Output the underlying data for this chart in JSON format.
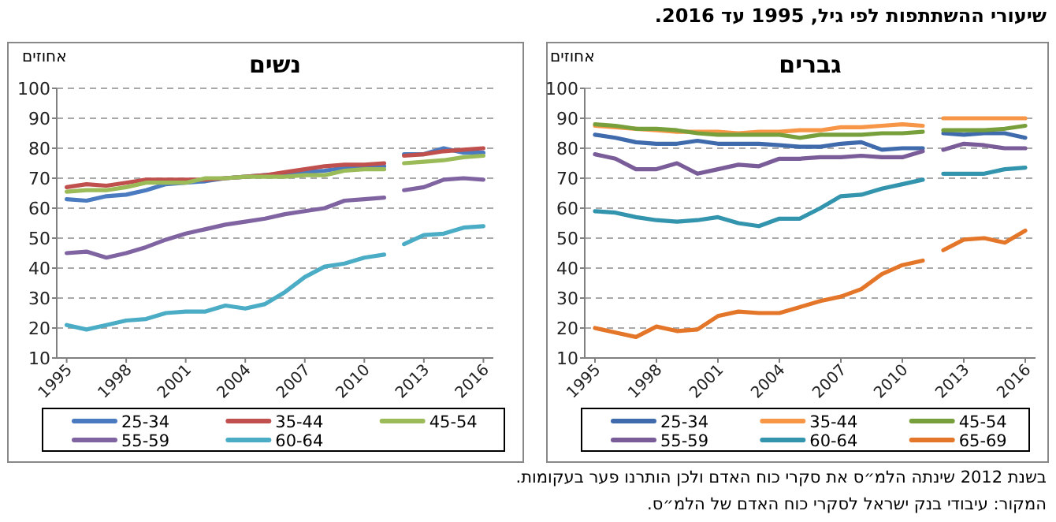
{
  "chart_data": [
    {
      "type": "line",
      "title": "גברים",
      "ylabel": "אחוזים",
      "annotations": [
        "שיעורי ההשתתפות לפי גיל, 1995 עד 2016.",
        "בשנת 2012 שינתה הלמ״ס את סקרי כוח האדם ולכן הותרנו פער בעקומות.",
        "המקור: עיבודי בנק ישראל לסקרי כוח האדם של הלמ״ס."
      ],
      "x": [
        1995,
        1996,
        1997,
        1998,
        1999,
        2000,
        2001,
        2002,
        2003,
        2004,
        2005,
        2006,
        2007,
        2008,
        2009,
        2010,
        2011,
        2011.5,
        2012,
        2013,
        2014,
        2015,
        2016
      ],
      "xlim": [
        1994.5,
        2016.5
      ],
      "xticks": [
        1995,
        1998,
        2001,
        2004,
        2007,
        2010,
        2013,
        2016
      ],
      "ylim": [
        10,
        100
      ],
      "yticks": [
        10,
        20,
        30,
        40,
        50,
        60,
        70,
        80,
        90,
        100
      ],
      "grid": "y",
      "legend": "bottom",
      "marker": "none",
      "line_style": "solid",
      "series": [
        {
          "name": "25-34",
          "color": "#3f6bad",
          "values": [
            84.5,
            83.5,
            82,
            81.5,
            81.5,
            82.5,
            81.5,
            81.5,
            81.5,
            81,
            80.5,
            80.5,
            81.5,
            82,
            79.5,
            80,
            80,
            null,
            85,
            84.5,
            85,
            85,
            83.5
          ]
        },
        {
          "name": "35-44",
          "color": "#f79646",
          "values": [
            87.5,
            87,
            86.5,
            86,
            85.5,
            85.5,
            85.5,
            85,
            85.5,
            85.5,
            86,
            86,
            87,
            87,
            87.5,
            88,
            87.5,
            null,
            90,
            90,
            90,
            90,
            90
          ]
        },
        {
          "name": "45-54",
          "color": "#77a03c",
          "values": [
            88,
            87.5,
            86.5,
            86.5,
            86,
            85,
            84.5,
            84.5,
            84.5,
            84.5,
            83.5,
            84.5,
            84.5,
            84.5,
            85,
            85,
            85.5,
            null,
            86,
            86,
            86,
            86.5,
            87.5
          ]
        },
        {
          "name": "55-59",
          "color": "#7a5c99",
          "values": [
            78,
            76.5,
            73,
            73,
            75,
            71.5,
            73,
            74.5,
            74,
            76.5,
            76.5,
            77,
            77,
            77.5,
            77,
            77,
            79,
            null,
            79.5,
            81.5,
            81,
            80,
            80
          ]
        },
        {
          "name": "60-64",
          "color": "#3394ad",
          "values": [
            59,
            58.5,
            57,
            56,
            55.5,
            56,
            57,
            55,
            54,
            56.5,
            56.5,
            60,
            64,
            64.5,
            66.5,
            68,
            69.5,
            null,
            71.5,
            71.5,
            71.5,
            73,
            73.5
          ]
        },
        {
          "name": "65-69",
          "color": "#e4762a",
          "values": [
            20,
            18.5,
            17,
            20.5,
            19,
            19.5,
            24,
            25.5,
            25,
            25,
            27,
            29,
            30.5,
            33,
            38,
            41,
            42.5,
            null,
            46,
            49.5,
            50,
            48.5,
            52.5
          ]
        }
      ]
    },
    {
      "type": "line",
      "title": "נשים",
      "ylabel": "אחוזים",
      "x": [
        1995,
        1996,
        1997,
        1998,
        1999,
        2000,
        2001,
        2002,
        2003,
        2004,
        2005,
        2006,
        2007,
        2008,
        2009,
        2010,
        2011,
        2011.5,
        2012,
        2013,
        2014,
        2015,
        2016
      ],
      "xlim": [
        1994.5,
        2016.5
      ],
      "xticks": [
        1995,
        1998,
        2001,
        2004,
        2007,
        2010,
        2013,
        2016
      ],
      "ylim": [
        10,
        100
      ],
      "yticks": [
        10,
        20,
        30,
        40,
        50,
        60,
        70,
        80,
        90,
        100
      ],
      "grid": "y",
      "legend": "bottom",
      "marker": "none",
      "line_style": "solid",
      "series": [
        {
          "name": "25-34",
          "color": "#4a7bc0",
          "values": [
            63,
            62.5,
            64,
            64.5,
            66,
            68,
            68.5,
            69,
            70,
            70.5,
            71,
            71.5,
            72,
            72.5,
            73.5,
            74,
            74,
            null,
            78,
            78,
            80,
            78.5,
            78.5
          ]
        },
        {
          "name": "35-44",
          "color": "#c0504d",
          "values": [
            67,
            68,
            67.5,
            68.5,
            69.5,
            69.5,
            69.5,
            69.5,
            70,
            70.5,
            71,
            72,
            73,
            74,
            74.5,
            74.5,
            75,
            null,
            77.5,
            78,
            79,
            79.5,
            80
          ]
        },
        {
          "name": "45-54",
          "color": "#9bbb59",
          "values": [
            65.5,
            66,
            66,
            67,
            68.5,
            68.5,
            68.5,
            70,
            70,
            70.5,
            70.5,
            70.5,
            71,
            71,
            72.5,
            73,
            73,
            null,
            75,
            75.5,
            76,
            77,
            77.5
          ]
        },
        {
          "name": "55-59",
          "color": "#8064a2",
          "values": [
            45,
            45.5,
            43.5,
            45,
            47,
            49.5,
            51.5,
            53,
            54.5,
            55.5,
            56.5,
            58,
            59,
            60,
            62.5,
            63,
            63.5,
            null,
            66,
            67,
            69.5,
            70,
            69.5
          ]
        },
        {
          "name": "60-64",
          "color": "#4bacc6",
          "values": [
            21,
            19.5,
            21,
            22.5,
            23,
            25,
            25.5,
            25.5,
            27.5,
            26.5,
            28,
            32,
            37,
            40.5,
            41.5,
            43.5,
            44.5,
            null,
            48,
            51,
            51.5,
            53.5,
            54
          ]
        }
      ]
    }
  ]
}
